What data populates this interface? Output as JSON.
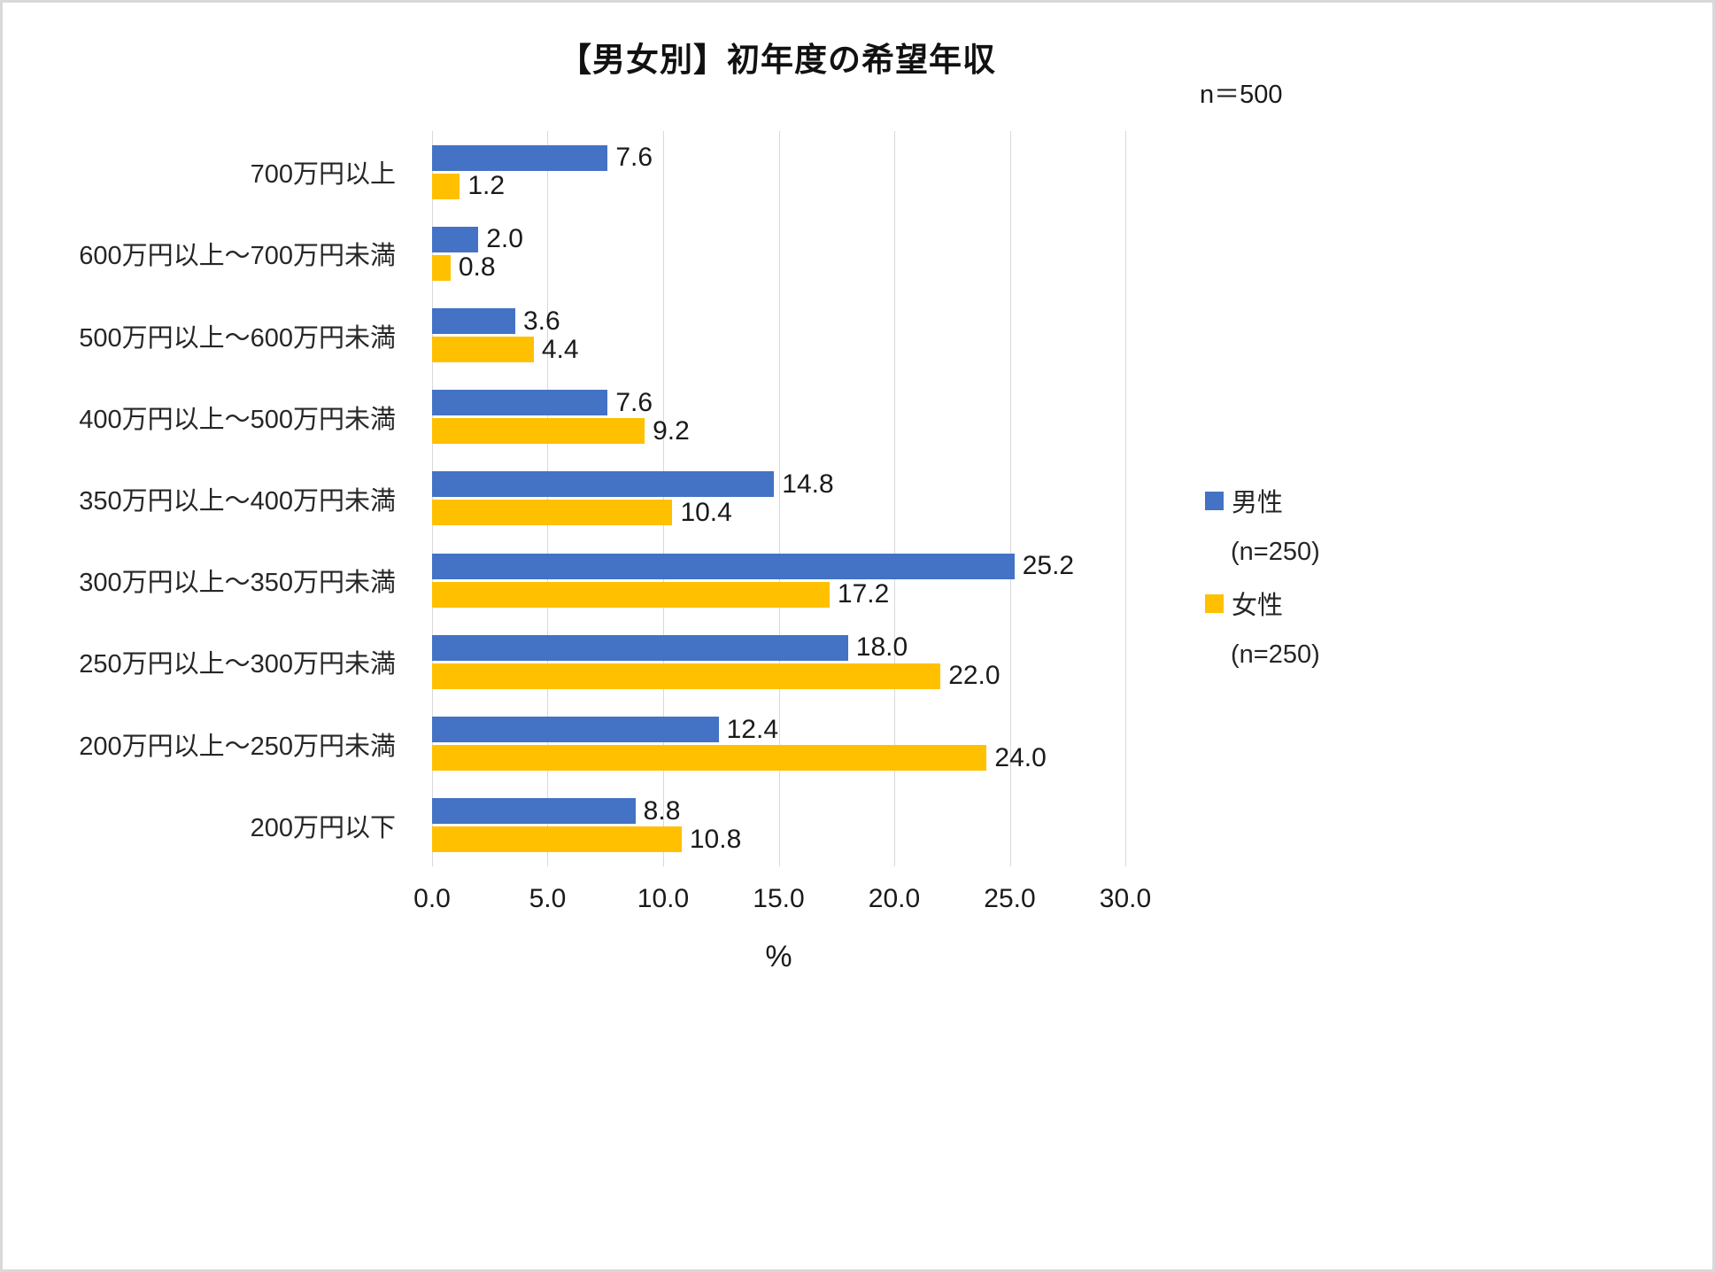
{
  "chart_data": {
    "type": "bar",
    "orientation": "horizontal",
    "title": "【男女別】初年度の希望年収",
    "n_label": "n＝500",
    "categories": [
      "700万円以上",
      "600万円以上～700万円未満",
      "500万円以上～600万円未満",
      "400万円以上～500万円未満",
      "350万円以上～400万円未満",
      "300万円以上～350万円未満",
      "250万円以上～300万円未満",
      "200万円以上～250万円未満",
      "200万円以下"
    ],
    "series": [
      {
        "name": "男性",
        "sub": "(n=250)",
        "color": "#4472C4",
        "values": [
          7.6,
          2.0,
          3.6,
          7.6,
          14.8,
          25.2,
          18.0,
          12.4,
          8.8
        ]
      },
      {
        "name": "女性",
        "sub": "(n=250)",
        "color": "#FFC000",
        "values": [
          1.2,
          0.8,
          4.4,
          9.2,
          10.4,
          17.2,
          22.0,
          24.0,
          10.8
        ]
      }
    ],
    "xlabel": "%",
    "xlim": [
      0,
      30
    ],
    "xticks": [
      "0.0",
      "5.0",
      "10.0",
      "15.0",
      "20.0",
      "25.0",
      "30.0"
    ],
    "grid": true,
    "legend_position": "right",
    "colors": {
      "male": "#4472C4",
      "female": "#FFC000",
      "gridline": "#d9d9d9"
    }
  }
}
